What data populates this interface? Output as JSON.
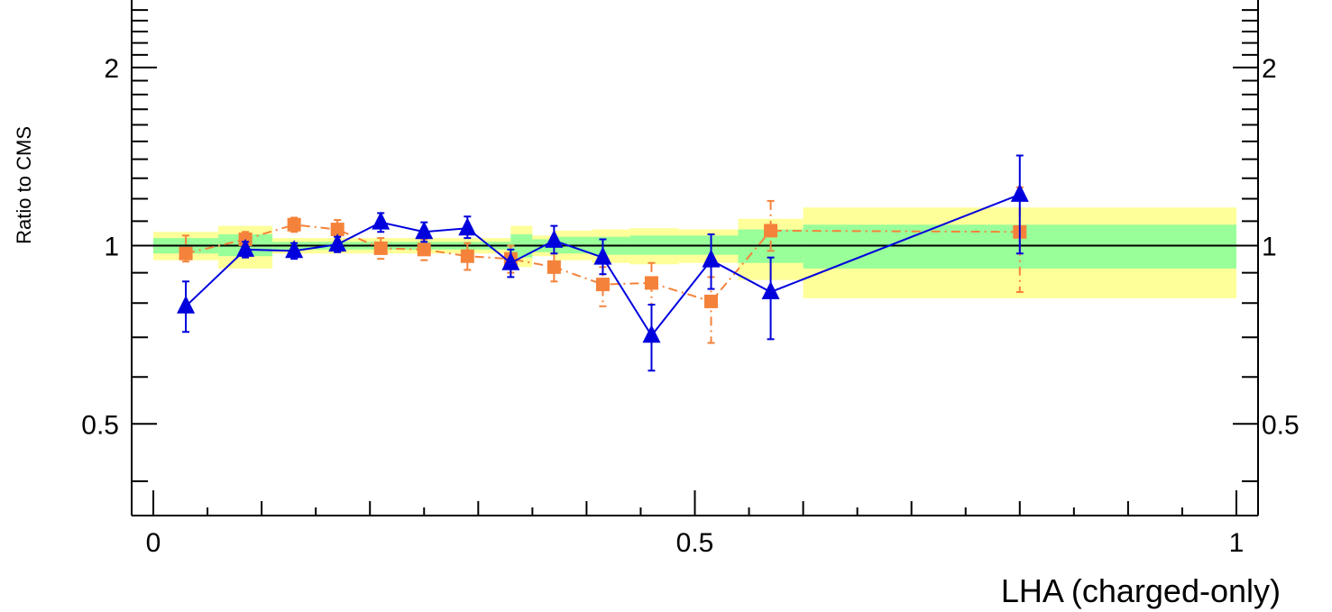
{
  "chart_data": {
    "type": "line",
    "xlabel": "LHA (charged-only)",
    "ylabel": "Ratio to CMS",
    "xlim": [
      -0.02,
      1.02
    ],
    "ylim": [
      0.35,
      2.6
    ],
    "y_scale": "log",
    "reference_line": 1,
    "x_ticks": [
      {
        "value": 0,
        "label": "0"
      },
      {
        "value": 0.5,
        "label": "0.5"
      },
      {
        "value": 1,
        "label": "1"
      }
    ],
    "y_ticks": [
      {
        "value": 0.5,
        "label": "0.5"
      },
      {
        "value": 1,
        "label": "1"
      },
      {
        "value": 2,
        "label": "2"
      }
    ],
    "uncertainty_bands": [
      {
        "x0": 0.0,
        "x1": 0.06,
        "inner": [
          0.97,
          1.03
        ],
        "outer": [
          0.945,
          1.055
        ]
      },
      {
        "x0": 0.06,
        "x1": 0.11,
        "inner": [
          0.96,
          1.045
        ],
        "outer": [
          0.915,
          1.08
        ]
      },
      {
        "x0": 0.11,
        "x1": 0.15,
        "inner": [
          0.985,
          1.015
        ],
        "outer": [
          0.97,
          1.03
        ]
      },
      {
        "x0": 0.15,
        "x1": 0.2,
        "inner": [
          0.985,
          1.015
        ],
        "outer": [
          0.97,
          1.03
        ]
      },
      {
        "x0": 0.2,
        "x1": 0.25,
        "inner": [
          0.985,
          1.015
        ],
        "outer": [
          0.97,
          1.03
        ]
      },
      {
        "x0": 0.25,
        "x1": 0.3,
        "inner": [
          0.985,
          1.015
        ],
        "outer": [
          0.97,
          1.03
        ]
      },
      {
        "x0": 0.3,
        "x1": 0.33,
        "inner": [
          0.985,
          1.015
        ],
        "outer": [
          0.97,
          1.03
        ]
      },
      {
        "x0": 0.33,
        "x1": 0.35,
        "inner": [
          0.955,
          1.045
        ],
        "outer": [
          0.92,
          1.08
        ]
      },
      {
        "x0": 0.35,
        "x1": 0.37,
        "inner": [
          0.975,
          1.025
        ],
        "outer": [
          0.96,
          1.04
        ]
      },
      {
        "x0": 0.37,
        "x1": 0.405,
        "inner": [
          0.97,
          1.035
        ],
        "outer": [
          0.945,
          1.06
        ]
      },
      {
        "x0": 0.405,
        "x1": 0.44,
        "inner": [
          0.965,
          1.035
        ],
        "outer": [
          0.935,
          1.065
        ]
      },
      {
        "x0": 0.44,
        "x1": 0.485,
        "inner": [
          0.965,
          1.04
        ],
        "outer": [
          0.93,
          1.07
        ]
      },
      {
        "x0": 0.485,
        "x1": 0.54,
        "inner": [
          0.965,
          1.04
        ],
        "outer": [
          0.935,
          1.065
        ]
      },
      {
        "x0": 0.54,
        "x1": 0.6,
        "inner": [
          0.935,
          1.065
        ],
        "outer": [
          0.875,
          1.11
        ]
      },
      {
        "x0": 0.6,
        "x1": 1.0,
        "inner": [
          0.915,
          1.085
        ],
        "outer": [
          0.815,
          1.16
        ]
      }
    ],
    "series": [
      {
        "style": "orange-squares-dashdot",
        "color": "#f5823a",
        "x": [
          0.03,
          0.085,
          0.13,
          0.17,
          0.21,
          0.25,
          0.29,
          0.33,
          0.37,
          0.415,
          0.46,
          0.515,
          0.57,
          0.8
        ],
        "y": [
          0.97,
          1.025,
          1.085,
          1.065,
          0.99,
          0.985,
          0.96,
          0.95,
          0.92,
          0.86,
          0.865,
          0.805,
          1.06,
          1.055
        ],
        "err_low": [
          0.03,
          0.03,
          0.03,
          0.03,
          0.04,
          0.04,
          0.05,
          0.05,
          0.05,
          0.07,
          0.07,
          0.12,
          0.08,
          0.22
        ],
        "err_high": [
          0.07,
          0.03,
          0.03,
          0.04,
          0.04,
          0.04,
          0.05,
          0.05,
          0.05,
          0.06,
          0.07,
          0.08,
          0.13,
          0.2
        ]
      },
      {
        "style": "blue-triangles-solid",
        "color": "#0000dd",
        "x": [
          0.03,
          0.085,
          0.13,
          0.17,
          0.21,
          0.25,
          0.29,
          0.33,
          0.37,
          0.415,
          0.46,
          0.515,
          0.57,
          0.8
        ],
        "y": [
          0.79,
          0.985,
          0.98,
          1.005,
          1.095,
          1.055,
          1.07,
          0.935,
          1.02,
          0.955,
          0.705,
          0.945,
          0.835,
          1.22
        ],
        "err_low": [
          0.075,
          0.03,
          0.03,
          0.03,
          0.04,
          0.04,
          0.04,
          0.05,
          0.05,
          0.06,
          0.09,
          0.1,
          0.14,
          0.25
        ],
        "err_high": [
          0.08,
          0.03,
          0.03,
          0.03,
          0.04,
          0.04,
          0.05,
          0.05,
          0.06,
          0.07,
          0.09,
          0.1,
          0.12,
          0.2
        ]
      }
    ]
  }
}
